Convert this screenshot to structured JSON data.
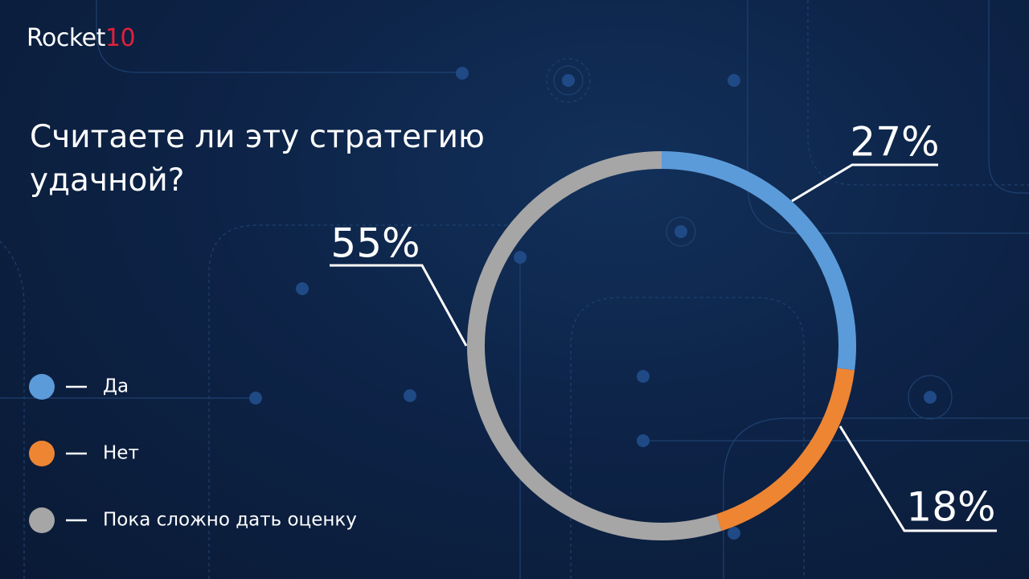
{
  "brand": {
    "name": "Rocket",
    "suffix": "10"
  },
  "chart_data": {
    "type": "donut",
    "title": "Считаете ли эту стратегию удачной?",
    "categories": [
      "Да",
      "Нет",
      "Пока сложно дать оценку"
    ],
    "values": [
      27,
      18,
      55
    ],
    "value_labels": [
      "27%",
      "18%",
      "55%"
    ],
    "colors": [
      "#5b9bd9",
      "#ee8533",
      "#a6a6a6"
    ]
  }
}
